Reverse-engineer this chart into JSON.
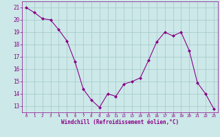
{
  "x": [
    0,
    1,
    2,
    3,
    4,
    5,
    6,
    7,
    8,
    9,
    10,
    11,
    12,
    13,
    14,
    15,
    16,
    17,
    18,
    19,
    20,
    21,
    22,
    23
  ],
  "y": [
    21.0,
    20.6,
    20.1,
    20.0,
    19.2,
    18.3,
    16.6,
    14.4,
    13.5,
    12.9,
    14.0,
    13.8,
    14.8,
    15.0,
    15.3,
    16.7,
    18.2,
    19.0,
    18.7,
    19.0,
    17.5,
    14.9,
    14.0,
    12.8
  ],
  "line_color": "#880088",
  "marker": "D",
  "marker_size": 2.0,
  "bg_color": "#cce8e8",
  "grid_color": "#aacccc",
  "xlabel": "Windchill (Refroidissement éolien,°C)",
  "xlabel_color": "#880088",
  "tick_color": "#880088",
  "ylim": [
    12.5,
    21.5
  ],
  "xlim": [
    -0.5,
    23.5
  ],
  "yticks": [
    13,
    14,
    15,
    16,
    17,
    18,
    19,
    20,
    21
  ],
  "xticks": [
    0,
    1,
    2,
    3,
    4,
    5,
    6,
    7,
    8,
    9,
    10,
    11,
    12,
    13,
    14,
    15,
    16,
    17,
    18,
    19,
    20,
    21,
    22,
    23
  ]
}
